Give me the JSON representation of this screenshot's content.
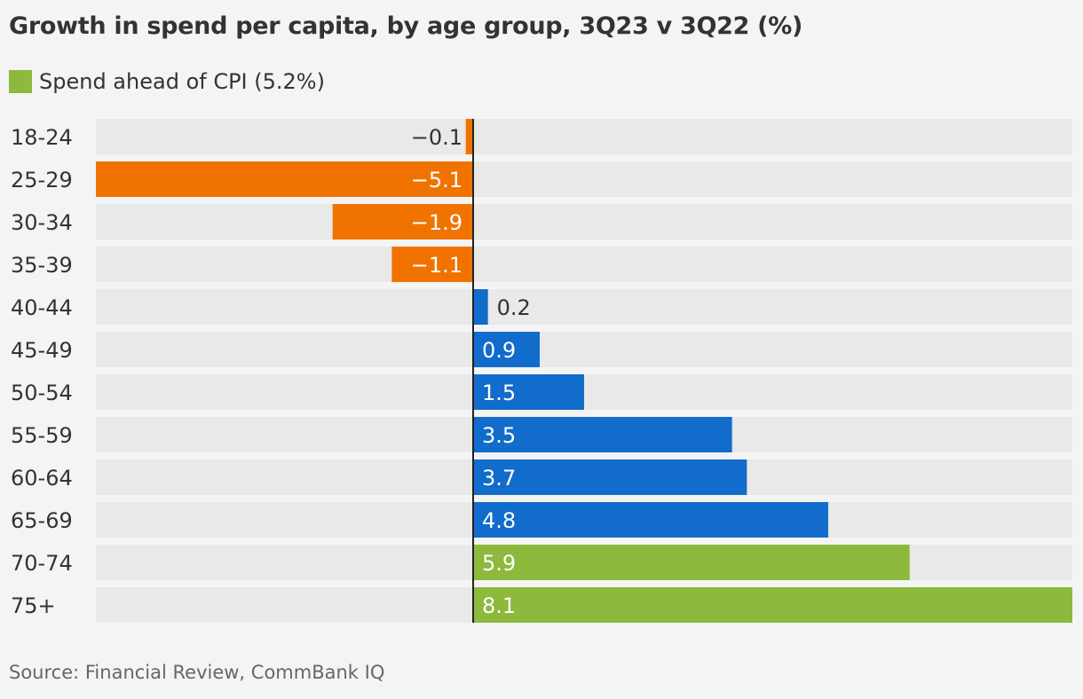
{
  "chart_data": {
    "type": "bar",
    "orientation": "horizontal",
    "title": "Growth in spend per capita, by age group, 3Q23 v 3Q22 (%)",
    "legend": {
      "label": "Spend ahead of CPI (5.2%)",
      "color": "#8db93c",
      "placement": "top-left"
    },
    "categories": [
      "18-24",
      "25-29",
      "30-34",
      "35-39",
      "40-44",
      "45-49",
      "50-54",
      "55-59",
      "60-64",
      "65-69",
      "70-74",
      "75+"
    ],
    "values": [
      -0.1,
      -5.1,
      -1.9,
      -1.1,
      0.2,
      0.9,
      1.5,
      3.5,
      3.7,
      4.8,
      5.9,
      8.1
    ],
    "value_labels": [
      "−0.1",
      "−5.1",
      "−1.9",
      "−1.1",
      "0.2",
      "0.9",
      "1.5",
      "3.5",
      "3.7",
      "4.8",
      "5.9",
      "8.1"
    ],
    "xlim": [
      -5.1,
      8.1
    ],
    "cpi_threshold": 5.2,
    "grid": false,
    "colors": {
      "negative": "#f07300",
      "positive": "#116ccb",
      "above_cpi": "#8db93c",
      "track": "#e9e9e9",
      "zero_line": "#222222"
    }
  },
  "source": "Source: Financial Review, CommBank IQ"
}
